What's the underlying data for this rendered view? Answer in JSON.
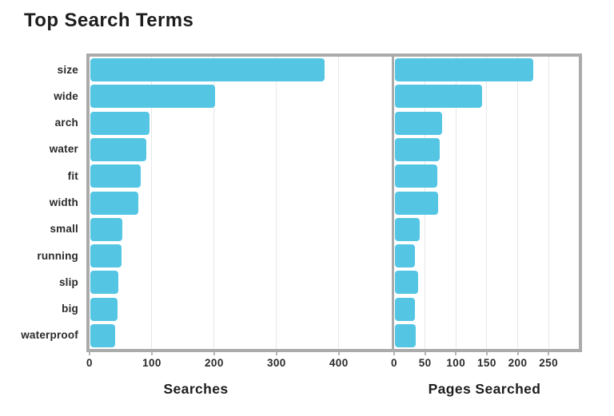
{
  "title": "Top Search Terms",
  "colors": {
    "bar": "#54c6e4",
    "frame": "#ababab",
    "divider": "#ababab",
    "gridline": "#e7e7e7",
    "text": "#2a2a2a"
  },
  "chart_data": [
    {
      "type": "bar",
      "orientation": "horizontal",
      "panel": "left",
      "xlabel": "Searches",
      "categories": [
        "size",
        "wide",
        "arch",
        "water",
        "fit",
        "width",
        "small",
        "running",
        "slip",
        "big",
        "waterproof"
      ],
      "values": [
        377,
        202,
        96,
        91,
        82,
        78,
        52,
        51,
        46,
        45,
        41
      ],
      "xticks": [
        0,
        100,
        200,
        300,
        400
      ],
      "xlim": [
        0,
        485
      ],
      "grid": "vertical-major",
      "legend": "none"
    },
    {
      "type": "bar",
      "orientation": "horizontal",
      "panel": "right",
      "xlabel": "Pages Searched",
      "categories": [
        "size",
        "wide",
        "arch",
        "water",
        "fit",
        "width",
        "small",
        "running",
        "slip",
        "big",
        "waterproof"
      ],
      "values": [
        225,
        142,
        78,
        74,
        70,
        71,
        41,
        34,
        39,
        34,
        35
      ],
      "xticks": [
        0,
        50,
        100,
        150,
        200,
        250
      ],
      "xlim": [
        0,
        299
      ],
      "grid": "vertical-major",
      "legend": "none"
    }
  ]
}
